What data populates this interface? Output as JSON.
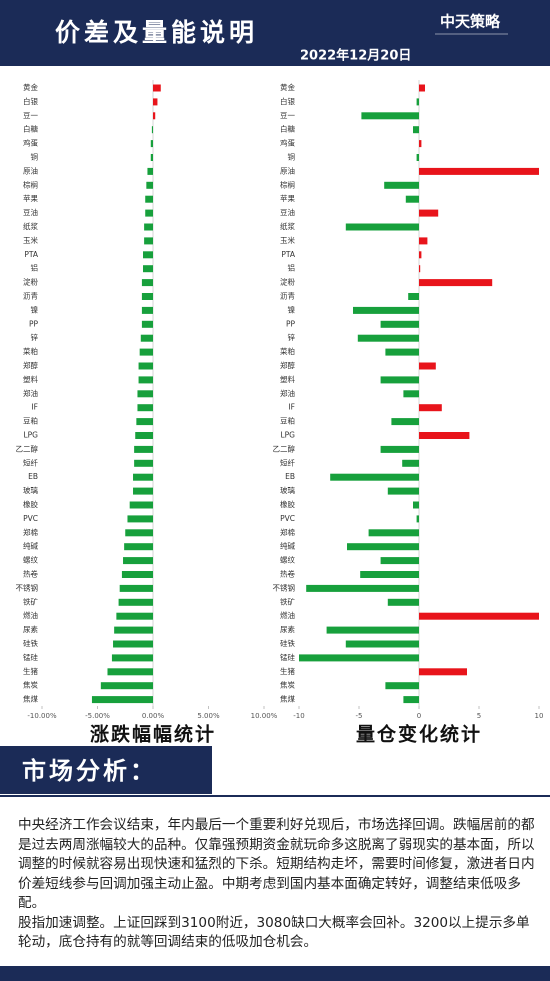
{
  "header": {
    "title": "价差及量能说明",
    "date": "2022年12月20日",
    "logo": "中天策略"
  },
  "chart_data": [
    {
      "type": "bar",
      "orientation": "horizontal",
      "title": "涨跌幅幅统计",
      "categories": [
        "黄金",
        "白银",
        "豆一",
        "白糖",
        "鸡蛋",
        "铜",
        "原油",
        "棕榈",
        "苹果",
        "豆油",
        "纸浆",
        "玉米",
        "PTA",
        "铝",
        "淀粉",
        "沥青",
        "镍",
        "PP",
        "锌",
        "菜粕",
        "郑醇",
        "塑料",
        "郑油",
        "IF",
        "豆粕",
        "LPG",
        "乙二醇",
        "短纤",
        "EB",
        "玻璃",
        "橡胶",
        "PVC",
        "郑棉",
        "纯碱",
        "螺纹",
        "热卷",
        "不锈钢",
        "铁矿",
        "燃油",
        "尿素",
        "硅铁",
        "锰硅",
        "生猪",
        "焦炭",
        "焦煤"
      ],
      "values": [
        0.7,
        0.4,
        0.2,
        -0.1,
        -0.2,
        -0.2,
        -0.5,
        -0.6,
        -0.7,
        -0.7,
        -0.8,
        -0.8,
        -0.9,
        -0.9,
        -1.0,
        -1.0,
        -1.0,
        -1.0,
        -1.1,
        -1.2,
        -1.3,
        -1.3,
        -1.4,
        -1.4,
        -1.5,
        -1.6,
        -1.7,
        -1.7,
        -1.8,
        -1.8,
        -2.1,
        -2.3,
        -2.5,
        -2.6,
        -2.7,
        -2.8,
        -3.0,
        -3.1,
        -3.3,
        -3.5,
        -3.6,
        -3.7,
        -4.1,
        -4.7,
        -5.5
      ],
      "positive_color": "#e8141b",
      "negative_color": "#17a03c",
      "xlim": [
        -10,
        10
      ],
      "xticks": [
        {
          "value": -10,
          "label": "-10.00%"
        },
        {
          "value": -5,
          "label": "-5.00%"
        },
        {
          "value": 0,
          "label": "0.00%"
        },
        {
          "value": 5,
          "label": "5.00%"
        },
        {
          "value": 10,
          "label": "10.00%"
        }
      ]
    },
    {
      "type": "bar",
      "orientation": "horizontal",
      "title": "量仓变化统计",
      "categories": [
        "黄金",
        "白银",
        "豆一",
        "白糖",
        "鸡蛋",
        "铜",
        "原油",
        "棕榈",
        "苹果",
        "豆油",
        "纸浆",
        "玉米",
        "PTA",
        "铝",
        "淀粉",
        "沥青",
        "镍",
        "PP",
        "锌",
        "菜粕",
        "郑醇",
        "塑料",
        "郑油",
        "IF",
        "豆粕",
        "LPG",
        "乙二醇",
        "短纤",
        "EB",
        "玻璃",
        "橡胶",
        "PVC",
        "郑棉",
        "纯碱",
        "螺纹",
        "热卷",
        "不锈钢",
        "铁矿",
        "燃油",
        "尿素",
        "硅铁",
        "锰硅",
        "生猪",
        "焦炭",
        "焦煤"
      ],
      "values": [
        0.5,
        -0.2,
        -4.8,
        -0.5,
        0.2,
        -0.2,
        10,
        -2.9,
        -1.1,
        1.6,
        -6.1,
        0.7,
        0.2,
        0.1,
        6.1,
        -0.9,
        -5.5,
        -3.2,
        -5.1,
        -2.8,
        1.4,
        -3.2,
        -1.3,
        1.9,
        -2.3,
        4.2,
        -3.2,
        -1.4,
        -7.4,
        -2.6,
        -0.5,
        -0.2,
        -4.2,
        -6.0,
        -3.2,
        -4.9,
        -9.4,
        -2.6,
        10,
        -7.7,
        -6.1,
        -10,
        4.0,
        -2.8,
        -1.3
      ],
      "positive_color": "#e8141b",
      "negative_color": "#17a03c",
      "xlim": [
        -10,
        10
      ],
      "xticks": [
        -10,
        -5,
        0,
        5,
        10
      ]
    }
  ],
  "analysis": {
    "heading": "市场分析：",
    "paragraphs": [
      "中央经济工作会议结束，年内最后一个重要利好兑现后，市场选择回调。跌幅居前的都是过去两周涨幅较大的品种。仅靠强预期资金就玩命多这脱离了弱现实的基本面，所以调整的时候就容易出现快速和猛烈的下杀。短期结构走坏，需要时间修复，激进者日内价差短线参与回调加强主动止盈。中期考虑到国内基本面确定转好，调整结束低吸多配。",
      "股指加速调整。上证回踩到3100附近，3080缺口大概率会回补。3200以上提示多单轮动，底仓持有的就等回调结束的低吸加仓机会。"
    ]
  }
}
